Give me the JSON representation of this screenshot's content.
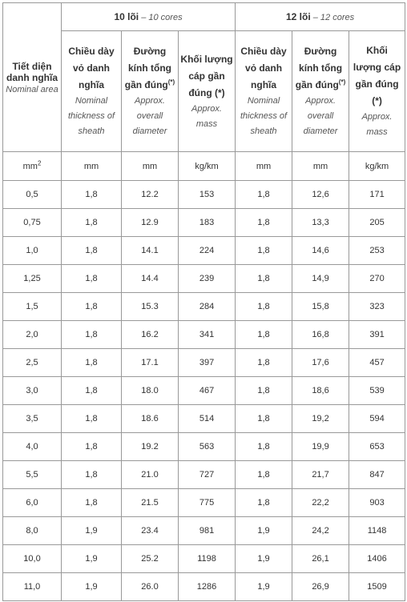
{
  "header": {
    "area_vi": "Tiết diện danh nghĩa",
    "area_en": "Nominal area",
    "group_10_vi": "10 lõi",
    "group_10_en": "10 cores",
    "group_12_vi": "12 lõi",
    "group_12_en": "12 cores",
    "group_sep": " – ",
    "thickness_vi": "Chiều dày vỏ danh nghĩa",
    "thickness_en": "Nominal thickness of sheath",
    "diameter_vi": "Đường kính tổng gần đúng",
    "diameter_mark": "(*)",
    "diameter_en": "Approx. overall diameter",
    "mass_vi": "Khối lượng cáp gần đúng (*)",
    "mass_en": "Approx. mass"
  },
  "units": {
    "area": "mm",
    "area_sup": "2",
    "thickness_10": "mm",
    "diameter_10": "mm",
    "mass_10": "kg/km",
    "thickness_12": "mm",
    "diameter_12": "mm",
    "mass_12": "kg/km"
  },
  "rows": [
    [
      "0,5",
      "1,8",
      "12.2",
      "153",
      "1,8",
      "12,6",
      "171"
    ],
    [
      "0,75",
      "1,8",
      "12.9",
      "183",
      "1,8",
      "13,3",
      "205"
    ],
    [
      "1,0",
      "1,8",
      "14.1",
      "224",
      "1,8",
      "14,6",
      "253"
    ],
    [
      "1,25",
      "1,8",
      "14.4",
      "239",
      "1,8",
      "14,9",
      "270"
    ],
    [
      "1,5",
      "1,8",
      "15.3",
      "284",
      "1,8",
      "15,8",
      "323"
    ],
    [
      "2,0",
      "1,8",
      "16.2",
      "341",
      "1,8",
      "16,8",
      "391"
    ],
    [
      "2,5",
      "1,8",
      "17.1",
      "397",
      "1,8",
      "17,6",
      "457"
    ],
    [
      "3,0",
      "1,8",
      "18.0",
      "467",
      "1,8",
      "18,6",
      "539"
    ],
    [
      "3,5",
      "1,8",
      "18.6",
      "514",
      "1,8",
      "19,2",
      "594"
    ],
    [
      "4,0",
      "1,8",
      "19.2",
      "563",
      "1,8",
      "19,9",
      "653"
    ],
    [
      "5,5",
      "1,8",
      "21.0",
      "727",
      "1,8",
      "21,7",
      "847"
    ],
    [
      "6,0",
      "1,8",
      "21.5",
      "775",
      "1,8",
      "22,2",
      "903"
    ],
    [
      "8,0",
      "1,9",
      "23.4",
      "981",
      "1,9",
      "24,2",
      "1148"
    ],
    [
      "10,0",
      "1,9",
      "25.2",
      "1198",
      "1,9",
      "26,1",
      "1406"
    ],
    [
      "11,0",
      "1,9",
      "26.0",
      "1286",
      "1,9",
      "26,9",
      "1509"
    ]
  ]
}
